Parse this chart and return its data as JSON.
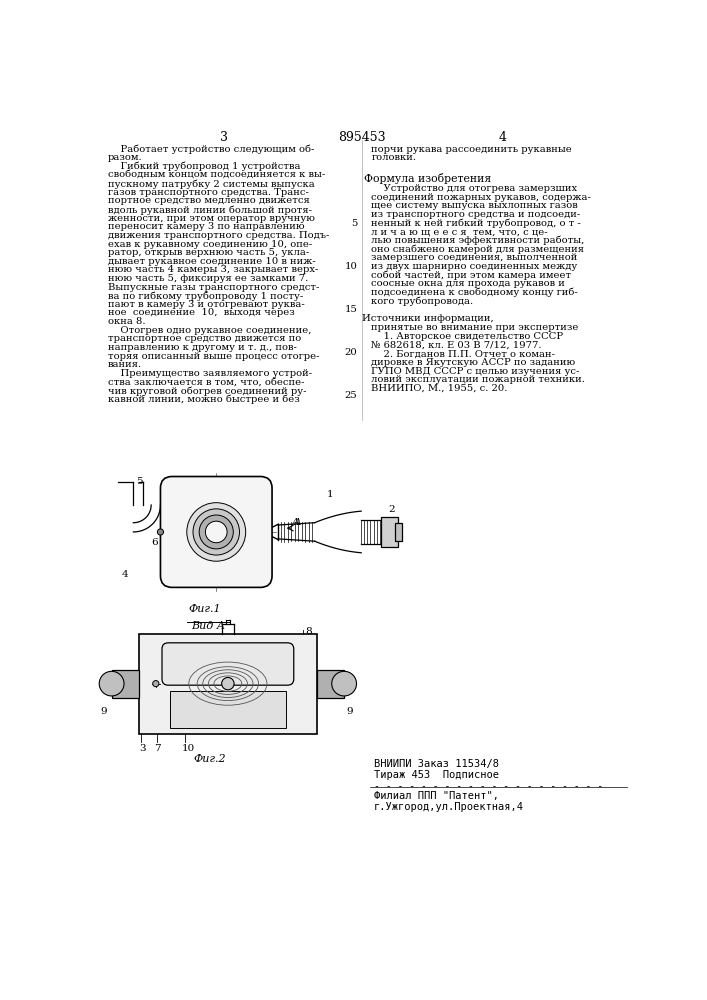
{
  "page_number_left": "3",
  "patent_number": "895453",
  "page_number_right": "4",
  "left_col": [
    "    Работает устройство следующим об-",
    "разом.",
    "    Гибкий трубопровод 1 устройства",
    "свободным концом подсоединяется к вы-",
    "пускному патрубку 2 системы выпуска",
    "газов транспортного средства. Транс-",
    "портное средство медленно движется",
    "вдоль рукавной линии большой протя-",
    "женности, при этом оператор вручную",
    "переносит камеру 3 по направлению",
    "движения транспортного средства. Подъ-",
    "ехав к рукавному соединению 10, опе-",
    "ратор, открыв верхнюю часть 5, укла-",
    "дывает рукавное соединение 10 в ниж-",
    "нюю часть 4 камеры 3, закрывает верх-",
    "нюю часть 5, фиксируя ее замками 7.",
    "Выпускные газы транспортного средст-",
    "ва по гибкому трубопроводу 1 посту-",
    "пают в камеру 3 и отогревают руква-",
    "ное  соединение  10,  выходя через",
    "окна 8.",
    "    Отогрев одно рукавное соединение,",
    "транспортное средство движется по",
    "направлению к другому и т. д., пов-",
    "торяя описанный выше процесс отогре-",
    "вания.",
    "    Преимущество заявляемого устрой-",
    "ства заключается в том, что, обеспе-",
    "чив круговой обогрев соединений ру-",
    "кавной линии, можно быстрее и без"
  ],
  "right_top": [
    "порчи рукава рассоединить рукавные",
    "головки."
  ],
  "formula_header": "Формула изобретения",
  "formula_body": [
    "    Устройство для отогрева замерзших",
    "соединений пожарных рукавов, содержа-",
    "щее систему выпуска выхлопных газов",
    "из транспортного средства и подсоеди-",
    "ненный к ней гибкий трубопровод, о т -",
    "л и ч а ю щ е е с я  тем, что, с це-",
    "лью повышения эффективности работы,",
    "оно снабжено камерой для размещения",
    "замерзшего соединения, выполченной",
    "из двух шарнирно соединенных между",
    "собой частей, при этом камера имеет",
    "соосные окна для прохода рукавов и",
    "подсоединена к свободному концу гиб-",
    "кого трубопровода."
  ],
  "sources_header": "Источники информации,",
  "sources_body": [
    "принятые во внимание при экспертизе",
    "    1. Авторское свидетельство СССР",
    "№ 682618, кл. Е 03 В 7/12, 1977.",
    "    2. Богданов П.П. Отчет о коман-",
    "дировке в Якутскую АССР по заданию",
    "ГУПО МВД СССР с целью изучения ус-",
    "ловий эксплуатации пожарной техники.",
    "ВНИИПО, М., 1955, с. 20."
  ],
  "line_num_vals": [
    "5",
    "10",
    "15",
    "20",
    "25"
  ],
  "line_num_positions": [
    4,
    9,
    14,
    19,
    24
  ],
  "bottom_line1": "ВНИИПИ Заказ 11534/8",
  "bottom_line2": "Тираж 453  Подписное",
  "bottom_dashes": "- - - - - - - - - - - - - - - - - - - - - - -",
  "bottom_line3": "Филиал ППП \"Патент\",",
  "bottom_line4": "г.Ужгород,ул.Проектная,4",
  "fig1_label": "Фиг.1",
  "fig2_label": "Фиг.2",
  "vid_label": "Вид А",
  "bg": "#ffffff"
}
